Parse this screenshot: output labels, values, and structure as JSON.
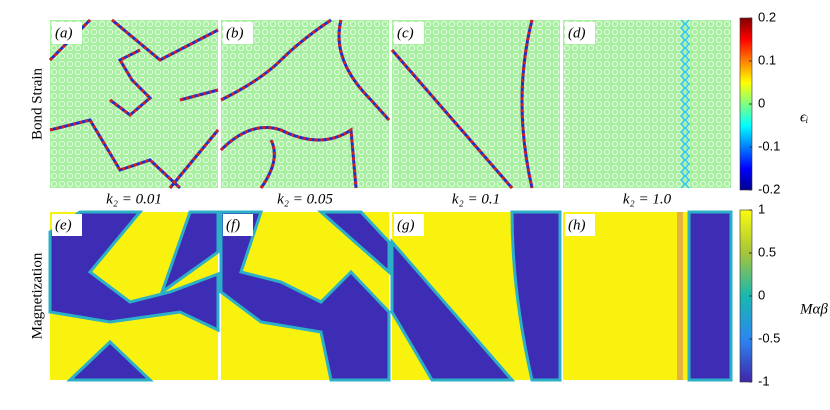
{
  "row_labels": [
    "Bond Strain",
    "Magnetization"
  ],
  "panel_labels": [
    "(a)",
    "(b)",
    "(c)",
    "(d)",
    "(e)",
    "(f)",
    "(g)",
    "(h)"
  ],
  "k_labels": [
    "k₂ = 0.01",
    "k₂ = 0.05",
    "k₂ = 0.1",
    "k₂ = 1.0"
  ],
  "colorbars": [
    {
      "label": "ϵᵢ",
      "lim": [
        -0.2,
        0.2
      ],
      "ticks": [
        0.2,
        0.1,
        0,
        -0.1,
        -0.2
      ]
    },
    {
      "label": "Mαβ",
      "lim": [
        -1,
        1
      ],
      "ticks": [
        1,
        0.5,
        0,
        -0.5,
        -1
      ]
    }
  ]
}
